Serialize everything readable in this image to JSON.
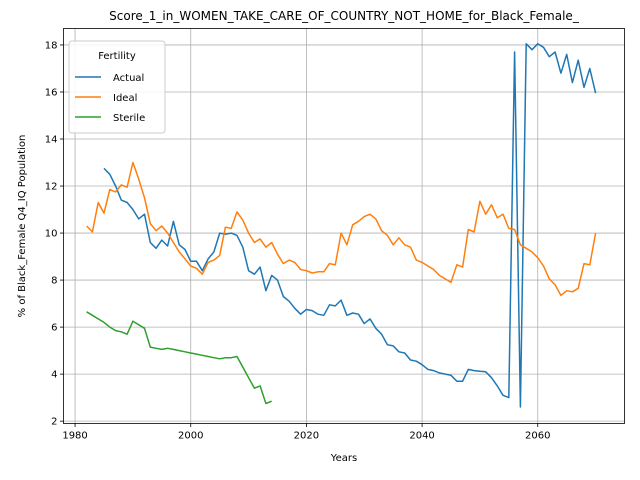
{
  "chart_data": {
    "type": "line",
    "title": "Score_1_in_WOMEN_TAKE_CARE_OF_COUNTRY_NOT_HOME_for_Black_Female_",
    "xlabel": "Years",
    "ylabel": "% of Black_Female Q4_IQ Population",
    "xlim": [
      1978,
      2075
    ],
    "ylim": [
      1.9,
      18.7
    ],
    "x_ticks": [
      1980,
      2000,
      2020,
      2040,
      2060
    ],
    "y_ticks": [
      2,
      4,
      6,
      8,
      10,
      12,
      14,
      16,
      18
    ],
    "grid": true,
    "legend": {
      "title": "Fertility",
      "placement": "upper left"
    },
    "series": [
      {
        "name": "Actual",
        "color": "#1f77b4",
        "points": [
          [
            1985,
            12.75
          ],
          [
            1986,
            12.5
          ],
          [
            1987,
            12.0
          ],
          [
            1988,
            11.4
          ],
          [
            1989,
            11.3
          ],
          [
            1990,
            11.0
          ],
          [
            1991,
            10.6
          ],
          [
            1992,
            10.8
          ],
          [
            1993,
            9.6
          ],
          [
            1994,
            9.35
          ],
          [
            1995,
            9.7
          ],
          [
            1996,
            9.45
          ],
          [
            1997,
            10.5
          ],
          [
            1998,
            9.5
          ],
          [
            1999,
            9.3
          ],
          [
            2000,
            8.8
          ],
          [
            2001,
            8.8
          ],
          [
            2002,
            8.4
          ],
          [
            2003,
            8.9
          ],
          [
            2004,
            9.2
          ],
          [
            2005,
            10.0
          ],
          [
            2006,
            9.95
          ],
          [
            2007,
            10.0
          ],
          [
            2008,
            9.9
          ],
          [
            2009,
            9.4
          ],
          [
            2010,
            8.4
          ],
          [
            2011,
            8.25
          ],
          [
            2012,
            8.55
          ],
          [
            2013,
            7.55
          ],
          [
            2014,
            8.2
          ],
          [
            2015,
            8.0
          ],
          [
            2016,
            7.3
          ],
          [
            2017,
            7.1
          ],
          [
            2018,
            6.8
          ],
          [
            2019,
            6.55
          ],
          [
            2020,
            6.75
          ],
          [
            2021,
            6.7
          ],
          [
            2022,
            6.55
          ],
          [
            2023,
            6.5
          ],
          [
            2024,
            6.95
          ],
          [
            2025,
            6.9
          ],
          [
            2026,
            7.15
          ],
          [
            2027,
            6.5
          ],
          [
            2028,
            6.6
          ],
          [
            2029,
            6.55
          ],
          [
            2030,
            6.15
          ],
          [
            2031,
            6.35
          ],
          [
            2032,
            5.95
          ],
          [
            2033,
            5.7
          ],
          [
            2034,
            5.25
          ],
          [
            2035,
            5.2
          ],
          [
            2036,
            4.95
          ],
          [
            2037,
            4.9
          ],
          [
            2038,
            4.6
          ],
          [
            2039,
            4.55
          ],
          [
            2040,
            4.4
          ],
          [
            2041,
            4.2
          ],
          [
            2042,
            4.15
          ],
          [
            2043,
            4.05
          ],
          [
            2044,
            4.0
          ],
          [
            2045,
            3.95
          ],
          [
            2046,
            3.7
          ],
          [
            2047,
            3.7
          ],
          [
            2048,
            4.2
          ],
          [
            2049,
            4.15
          ],
          [
            2050,
            4.12
          ],
          [
            2051,
            4.1
          ],
          [
            2052,
            3.85
          ],
          [
            2053,
            3.5
          ],
          [
            2054,
            3.1
          ],
          [
            2055,
            3.0
          ],
          [
            2056,
            17.7
          ],
          [
            2057,
            2.6
          ],
          [
            2058,
            18.05
          ],
          [
            2059,
            17.8
          ],
          [
            2060,
            18.05
          ],
          [
            2061,
            17.9
          ],
          [
            2062,
            17.5
          ],
          [
            2063,
            17.7
          ],
          [
            2064,
            16.8
          ],
          [
            2065,
            17.6
          ],
          [
            2066,
            16.4
          ],
          [
            2067,
            17.35
          ],
          [
            2068,
            16.2
          ],
          [
            2069,
            17.0
          ],
          [
            2070,
            15.95
          ]
        ]
      },
      {
        "name": "Ideal",
        "color": "#ff7f0e",
        "points": [
          [
            1982,
            10.3
          ],
          [
            1983,
            10.05
          ],
          [
            1984,
            11.3
          ],
          [
            1985,
            10.85
          ],
          [
            1986,
            11.85
          ],
          [
            1987,
            11.75
          ],
          [
            1988,
            12.05
          ],
          [
            1989,
            11.95
          ],
          [
            1990,
            13.0
          ],
          [
            1991,
            12.3
          ],
          [
            1992,
            11.5
          ],
          [
            1993,
            10.4
          ],
          [
            1994,
            10.1
          ],
          [
            1995,
            10.3
          ],
          [
            1996,
            10.0
          ],
          [
            1997,
            9.6
          ],
          [
            1998,
            9.2
          ],
          [
            1999,
            8.9
          ],
          [
            2000,
            8.6
          ],
          [
            2001,
            8.5
          ],
          [
            2002,
            8.25
          ],
          [
            2003,
            8.75
          ],
          [
            2004,
            8.85
          ],
          [
            2005,
            9.05
          ],
          [
            2006,
            10.25
          ],
          [
            2007,
            10.2
          ],
          [
            2008,
            10.9
          ],
          [
            2009,
            10.55
          ],
          [
            2010,
            10.0
          ],
          [
            2011,
            9.6
          ],
          [
            2012,
            9.75
          ],
          [
            2013,
            9.4
          ],
          [
            2014,
            9.6
          ],
          [
            2015,
            9.1
          ],
          [
            2016,
            8.7
          ],
          [
            2017,
            8.85
          ],
          [
            2018,
            8.75
          ],
          [
            2019,
            8.45
          ],
          [
            2020,
            8.4
          ],
          [
            2021,
            8.3
          ],
          [
            2022,
            8.35
          ],
          [
            2023,
            8.35
          ],
          [
            2024,
            8.7
          ],
          [
            2025,
            8.65
          ],
          [
            2026,
            10.0
          ],
          [
            2027,
            9.5
          ],
          [
            2028,
            10.35
          ],
          [
            2029,
            10.5
          ],
          [
            2030,
            10.7
          ],
          [
            2031,
            10.8
          ],
          [
            2032,
            10.6
          ],
          [
            2033,
            10.1
          ],
          [
            2034,
            9.9
          ],
          [
            2035,
            9.5
          ],
          [
            2036,
            9.8
          ],
          [
            2037,
            9.5
          ],
          [
            2038,
            9.4
          ],
          [
            2039,
            8.85
          ],
          [
            2040,
            8.75
          ],
          [
            2041,
            8.6
          ],
          [
            2042,
            8.45
          ],
          [
            2043,
            8.2
          ],
          [
            2044,
            8.05
          ],
          [
            2045,
            7.9
          ],
          [
            2046,
            8.65
          ],
          [
            2047,
            8.55
          ],
          [
            2048,
            10.15
          ],
          [
            2049,
            10.05
          ],
          [
            2050,
            11.35
          ],
          [
            2051,
            10.8
          ],
          [
            2052,
            11.2
          ],
          [
            2053,
            10.65
          ],
          [
            2054,
            10.8
          ],
          [
            2055,
            10.2
          ],
          [
            2056,
            10.15
          ],
          [
            2057,
            9.5
          ],
          [
            2058,
            9.35
          ],
          [
            2059,
            9.2
          ],
          [
            2060,
            8.95
          ],
          [
            2061,
            8.6
          ],
          [
            2062,
            8.05
          ],
          [
            2063,
            7.8
          ],
          [
            2064,
            7.35
          ],
          [
            2065,
            7.55
          ],
          [
            2066,
            7.5
          ],
          [
            2067,
            7.65
          ],
          [
            2068,
            8.7
          ],
          [
            2069,
            8.65
          ],
          [
            2070,
            10.0
          ]
        ]
      },
      {
        "name": "Sterile",
        "color": "#2ca02c",
        "points": [
          [
            1982,
            6.65
          ],
          [
            1983,
            6.5
          ],
          [
            1984,
            6.35
          ],
          [
            1985,
            6.2
          ],
          [
            1986,
            6.0
          ],
          [
            1987,
            5.85
          ],
          [
            1988,
            5.8
          ],
          [
            1989,
            5.7
          ],
          [
            1990,
            6.25
          ],
          [
            1991,
            6.1
          ],
          [
            1992,
            5.95
          ],
          [
            1993,
            5.15
          ],
          [
            1994,
            5.1
          ],
          [
            1995,
            5.05
          ],
          [
            1996,
            5.1
          ],
          [
            1997,
            5.05
          ],
          [
            1998,
            5.0
          ],
          [
            1999,
            4.95
          ],
          [
            2000,
            4.9
          ],
          [
            2001,
            4.85
          ],
          [
            2002,
            4.8
          ],
          [
            2003,
            4.75
          ],
          [
            2004,
            4.7
          ],
          [
            2005,
            4.65
          ],
          [
            2006,
            4.7
          ],
          [
            2007,
            4.7
          ],
          [
            2008,
            4.75
          ],
          [
            2009,
            4.3
          ],
          [
            2010,
            3.85
          ],
          [
            2011,
            3.4
          ],
          [
            2012,
            3.5
          ],
          [
            2013,
            2.75
          ],
          [
            2014,
            2.85
          ]
        ]
      }
    ]
  }
}
